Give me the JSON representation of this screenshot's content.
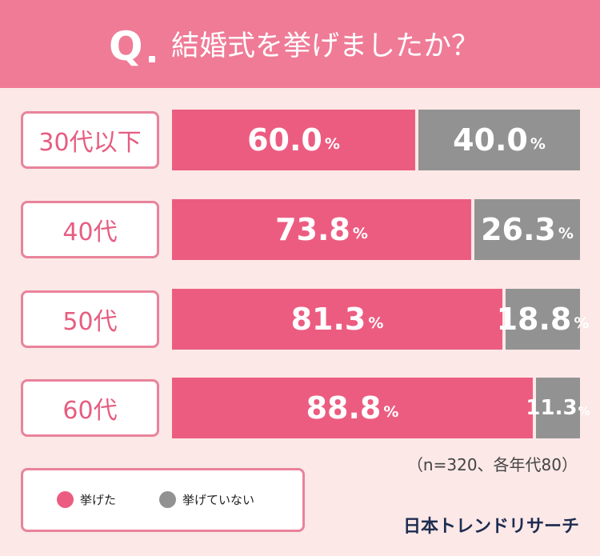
{
  "header": {
    "q_mark": "Q",
    "question": "結婚式を挙げましたか？"
  },
  "chart_data": {
    "type": "bar",
    "stacked": true,
    "orientation": "horizontal",
    "title": "結婚式を挙げましたか？",
    "categories": [
      "30代以下",
      "40代",
      "50代",
      "60代"
    ],
    "series": [
      {
        "name": "挙げた",
        "values": [
          60.0,
          73.8,
          81.3,
          88.8
        ],
        "color": "#ec5c81"
      },
      {
        "name": "挙げていない",
        "values": [
          40.0,
          26.3,
          18.8,
          11.3
        ],
        "color": "#929292"
      }
    ],
    "value_labels": [
      [
        "60.0",
        "40.0"
      ],
      [
        "73.8",
        "26.3"
      ],
      [
        "81.3",
        "18.8"
      ],
      [
        "88.8",
        "11.3"
      ]
    ],
    "unit": "%",
    "xlim": [
      0,
      100
    ],
    "grid": false,
    "legend_position": "bottom-left"
  },
  "sample_note": "（n=320、各年代80）",
  "legend": {
    "items": [
      {
        "label": "挙げた",
        "color": "#ec5c81"
      },
      {
        "label": "挙げていない",
        "color": "#929292"
      }
    ]
  },
  "brand": "日本トレンドリサーチ"
}
